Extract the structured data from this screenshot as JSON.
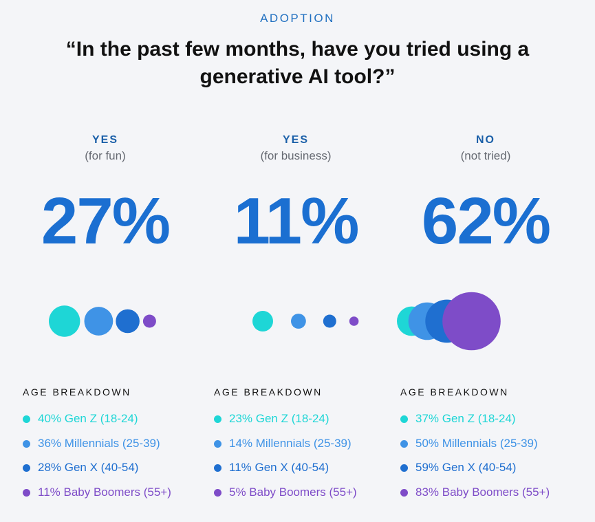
{
  "eyebrow": "ADOPTION",
  "title_line1": "“In the past few months, have you tried using a",
  "title_line2": "generative AI tool?”",
  "colors": {
    "gen_z": "#1ed6d6",
    "millennials": "#3f93e6",
    "gen_x": "#1f6fd0",
    "boomers": "#7e4cc8",
    "accent": "#1b6fd1"
  },
  "chart_data": {
    "type": "bubble",
    "title": "“In the past few months, have you tried using a generative AI tool?”",
    "groups": [
      {
        "answer": "YES",
        "sub": "(for fun)",
        "overall_pct": "27%",
        "overall_value": 27,
        "breakdown_title": "AGE BREAKDOWN",
        "segments": [
          {
            "value": 40,
            "label": "40% Gen Z (18-24)",
            "cohort": "gen_z"
          },
          {
            "value": 36,
            "label": "36% Millennials (25-39)",
            "cohort": "millennials"
          },
          {
            "value": 28,
            "label": "28% Gen X (40-54)",
            "cohort": "gen_x"
          },
          {
            "value": 11,
            "label": "11% Baby Boomers (55+)",
            "cohort": "boomers"
          }
        ]
      },
      {
        "answer": "YES",
        "sub": "(for business)",
        "overall_pct": "11%",
        "overall_value": 11,
        "breakdown_title": "AGE BREAKDOWN",
        "segments": [
          {
            "value": 23,
            "label": "23% Gen Z (18-24)",
            "cohort": "gen_z"
          },
          {
            "value": 14,
            "label": "14% Millennials (25-39)",
            "cohort": "millennials"
          },
          {
            "value": 11,
            "label": "11% Gen X (40-54)",
            "cohort": "gen_x"
          },
          {
            "value": 5,
            "label": "5% Baby Boomers (55+)",
            "cohort": "boomers"
          }
        ]
      },
      {
        "answer": "NO",
        "sub": "(not tried)",
        "overall_pct": "62%",
        "overall_value": 62,
        "breakdown_title": "AGE BREAKDOWN",
        "segments": [
          {
            "value": 37,
            "label": "37% Gen Z (18-24)",
            "cohort": "gen_z"
          },
          {
            "value": 50,
            "label": "50% Millennials (25-39)",
            "cohort": "millennials"
          },
          {
            "value": 59,
            "label": "59% Gen X (40-54)",
            "cohort": "gen_x"
          },
          {
            "value": 83,
            "label": "83% Baby Boomers (55+)",
            "cohort": "boomers"
          }
        ]
      }
    ]
  }
}
